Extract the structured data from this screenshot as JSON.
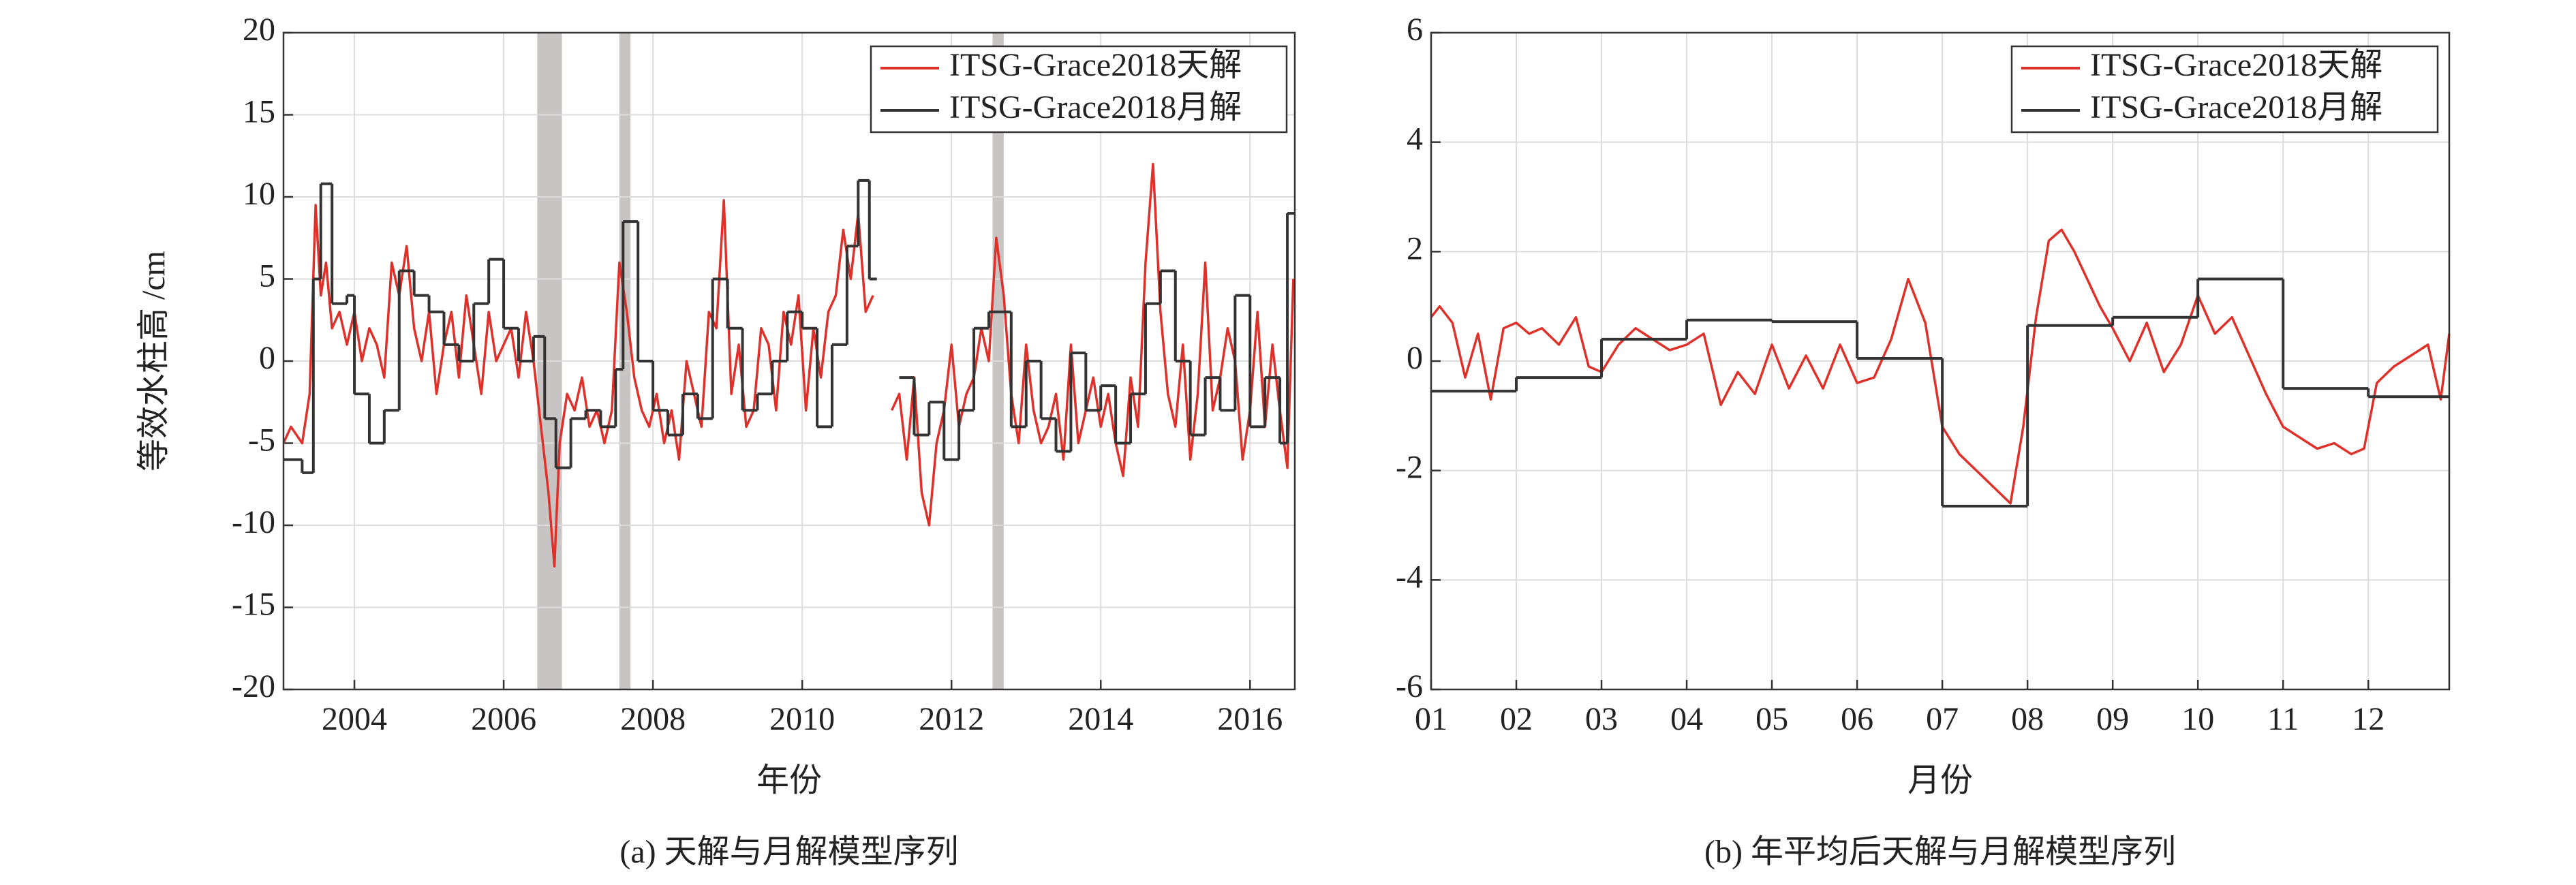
{
  "chart_data": [
    {
      "type": "line",
      "caption": "(a) 天解与月解模型序列",
      "xlabel": "年份",
      "ylabel": "等效水柱高 /cm",
      "xlim": [
        2003.05,
        2016.6
      ],
      "xticks": [
        2004,
        2006,
        2008,
        2010,
        2012,
        2014,
        2016
      ],
      "ylim": [
        -20,
        20
      ],
      "yticks": [
        -20,
        -15,
        -10,
        -5,
        0,
        5,
        10,
        15,
        20
      ],
      "grid": true,
      "legend": "upper right",
      "shade_color": "#c8c4c4",
      "shaded_spans": [
        [
          2006.45,
          2006.78
        ],
        [
          2007.55,
          2007.7
        ],
        [
          2012.55,
          2012.7
        ]
      ],
      "series": [
        {
          "name": "ITSG-Grace2018天解",
          "color": "#e0302a",
          "x": [
            2003.05,
            2003.15,
            2003.3,
            2003.4,
            2003.48,
            2003.55,
            2003.62,
            2003.7,
            2003.8,
            2003.9,
            2004.0,
            2004.1,
            2004.2,
            2004.3,
            2004.4,
            2004.5,
            2004.6,
            2004.7,
            2004.8,
            2004.9,
            2005.0,
            2005.1,
            2005.2,
            2005.3,
            2005.4,
            2005.5,
            2005.6,
            2005.7,
            2005.8,
            2005.9,
            2006.0,
            2006.1,
            2006.2,
            2006.3,
            2006.4,
            2006.5,
            2006.6,
            2006.68,
            2006.75,
            2006.85,
            2006.95,
            2007.05,
            2007.15,
            2007.25,
            2007.35,
            2007.45,
            2007.55,
            2007.65,
            2007.75,
            2007.85,
            2007.95,
            2008.05,
            2008.15,
            2008.25,
            2008.35,
            2008.45,
            2008.55,
            2008.65,
            2008.75,
            2008.85,
            2008.95,
            2009.05,
            2009.15,
            2009.25,
            2009.35,
            2009.45,
            2009.55,
            2009.65,
            2009.75,
            2009.85,
            2009.95,
            2010.05,
            2010.15,
            2010.25,
            2010.35,
            2010.45,
            2010.55,
            2010.65,
            2010.75,
            2010.85,
            2010.95,
            2011.05,
            2011.2,
            2011.3,
            2011.4,
            2011.5,
            2011.6,
            2011.7,
            2011.8,
            2011.9,
            2012.0,
            2012.1,
            2012.2,
            2012.3,
            2012.4,
            2012.5,
            2012.6,
            2012.7,
            2012.8,
            2012.9,
            2013.0,
            2013.1,
            2013.2,
            2013.3,
            2013.4,
            2013.5,
            2013.6,
            2013.7,
            2013.8,
            2013.9,
            2014.0,
            2014.1,
            2014.2,
            2014.3,
            2014.4,
            2014.5,
            2014.6,
            2014.7,
            2014.8,
            2014.9,
            2015.0,
            2015.1,
            2015.2,
            2015.3,
            2015.4,
            2015.5,
            2015.6,
            2015.7,
            2015.8,
            2015.9,
            2016.0,
            2016.1,
            2016.2,
            2016.3,
            2016.4,
            2016.5,
            2016.58
          ],
          "values": [
            -5,
            -4,
            -5,
            -2,
            9.5,
            4,
            6,
            2,
            3,
            1,
            3,
            0,
            2,
            1,
            -1,
            6,
            4,
            7,
            2,
            0,
            3,
            -2,
            1,
            3,
            -1,
            4,
            1,
            -2,
            3,
            0,
            1,
            2,
            -1,
            3,
            0,
            -4,
            -8,
            -12.5,
            -5,
            -2,
            -3,
            -1,
            -4,
            -3,
            -5,
            -3,
            6,
            3,
            -1,
            -3,
            -4,
            -2,
            -5,
            -3,
            -6,
            0,
            -2,
            -4,
            3,
            2,
            9.8,
            -2,
            1,
            -4,
            -3,
            2,
            1,
            -3,
            3,
            1,
            4,
            -3,
            2,
            -1,
            3,
            4,
            8,
            5,
            9,
            3,
            4,
            null,
            -3,
            -2,
            -6,
            -1,
            -8,
            -10,
            -5,
            -3,
            1,
            -4,
            -2,
            -1,
            2,
            0,
            7.5,
            4,
            -2,
            -5,
            1,
            -3,
            -5,
            -4,
            -2,
            -6,
            1,
            -5,
            -3,
            -1,
            -4,
            -2,
            -5,
            -7,
            -1,
            -4,
            6,
            12,
            3,
            -2,
            -4,
            1,
            -6,
            -2,
            6,
            -3,
            -1,
            2,
            0,
            -6,
            -3,
            3,
            -4,
            1,
            -3,
            -6.5,
            5
          ]
        },
        {
          "name": "ITSG-Grace2018月解",
          "color": "#333333",
          "step": true,
          "x": [
            2003.05,
            2003.3,
            2003.45,
            2003.55,
            2003.7,
            2003.9,
            2004.0,
            2004.2,
            2004.4,
            2004.6,
            2004.8,
            2005.0,
            2005.2,
            2005.4,
            2005.6,
            2005.8,
            2006.0,
            2006.2,
            2006.4,
            2006.55,
            2006.7,
            2006.9,
            2007.1,
            2007.3,
            2007.5,
            2007.6,
            2007.8,
            2008.0,
            2008.2,
            2008.4,
            2008.6,
            2008.8,
            2009.0,
            2009.2,
            2009.4,
            2009.6,
            2009.8,
            2010.0,
            2010.2,
            2010.4,
            2010.6,
            2010.75,
            2010.9,
            2011.0,
            2011.3,
            2011.5,
            2011.7,
            2011.9,
            2012.1,
            2012.3,
            2012.5,
            2012.8,
            2013.0,
            2013.2,
            2013.4,
            2013.6,
            2013.8,
            2014.0,
            2014.2,
            2014.4,
            2014.6,
            2014.8,
            2015.0,
            2015.2,
            2015.4,
            2015.6,
            2015.8,
            2016.0,
            2016.2,
            2016.4,
            2016.5
          ],
          "values": [
            -6,
            -6.8,
            5,
            10.8,
            3.5,
            4,
            -2,
            -5,
            -3,
            5.5,
            4,
            3,
            1,
            0,
            3.5,
            6.2,
            2,
            0,
            1.5,
            -3.5,
            -6.5,
            -3.5,
            -3,
            -4,
            -0.5,
            8.5,
            0,
            -3,
            -4.5,
            -2,
            -3.5,
            5,
            2,
            -3,
            -2,
            0,
            3,
            2,
            -4,
            1,
            7,
            11,
            5,
            null,
            -1,
            -4.5,
            -2.5,
            -6,
            -3,
            2,
            3,
            -4,
            0,
            -3.5,
            -5.5,
            0.5,
            -3,
            -1.5,
            -5,
            -2,
            3.5,
            5.5,
            0,
            -4.5,
            -1,
            -3,
            4,
            -4,
            -1,
            -5,
            9
          ]
        }
      ]
    },
    {
      "type": "line",
      "caption": "(b) 年平均后天解与月解模型序列",
      "xlabel": "月份",
      "xlim": [
        1,
        12.95
      ],
      "xticks": [
        {
          "value": 1,
          "label": "01"
        },
        {
          "value": 2,
          "label": "02"
        },
        {
          "value": 3,
          "label": "03"
        },
        {
          "value": 4,
          "label": "04"
        },
        {
          "value": 5,
          "label": "05"
        },
        {
          "value": 6,
          "label": "06"
        },
        {
          "value": 7,
          "label": "07"
        },
        {
          "value": 8,
          "label": "08"
        },
        {
          "value": 9,
          "label": "09"
        },
        {
          "value": 10,
          "label": "10"
        },
        {
          "value": 11,
          "label": "11"
        },
        {
          "value": 12,
          "label": "12"
        }
      ],
      "ylim": [
        -6,
        6
      ],
      "yticks": [
        -6,
        -4,
        -2,
        0,
        2,
        4,
        6
      ],
      "grid": true,
      "legend": "upper right",
      "series": [
        {
          "name": "ITSG-Grace2018天解",
          "color": "#e0302a",
          "x": [
            1,
            1.1,
            1.25,
            1.4,
            1.55,
            1.7,
            1.85,
            2.0,
            2.15,
            2.3,
            2.5,
            2.7,
            2.85,
            3.0,
            3.2,
            3.4,
            3.6,
            3.8,
            4.0,
            4.2,
            4.4,
            4.6,
            4.8,
            5.0,
            5.2,
            5.4,
            5.6,
            5.8,
            6.0,
            6.2,
            6.4,
            6.6,
            6.8,
            7.0,
            7.2,
            7.4,
            7.6,
            7.8,
            7.95,
            8.1,
            8.25,
            8.4,
            8.55,
            8.7,
            8.85,
            9.0,
            9.2,
            9.4,
            9.6,
            9.8,
            10.0,
            10.2,
            10.4,
            10.6,
            10.8,
            11.0,
            11.2,
            11.4,
            11.6,
            11.8,
            11.95,
            12.1,
            12.3,
            12.5,
            12.7,
            12.85,
            12.95
          ],
          "values": [
            0.8,
            1.0,
            0.7,
            -0.3,
            0.5,
            -0.7,
            0.6,
            0.7,
            0.5,
            0.6,
            0.3,
            0.8,
            -0.1,
            -0.2,
            0.3,
            0.6,
            0.4,
            0.2,
            0.3,
            0.5,
            -0.8,
            -0.2,
            -0.6,
            0.3,
            -0.5,
            0.1,
            -0.5,
            0.3,
            -0.4,
            -0.3,
            0.4,
            1.5,
            0.7,
            -1.2,
            -1.7,
            -2.0,
            -2.3,
            -2.6,
            -1.2,
            0.8,
            2.2,
            2.4,
            2.0,
            1.5,
            1.0,
            0.6,
            0.0,
            0.7,
            -0.2,
            0.3,
            1.2,
            0.5,
            0.8,
            0.1,
            -0.6,
            -1.2,
            -1.4,
            -1.6,
            -1.5,
            -1.7,
            -1.6,
            -0.4,
            -0.1,
            0.1,
            0.3,
            -0.7,
            0.5
          ]
        },
        {
          "name": "ITSG-Grace2018月解",
          "color": "#333333",
          "step": true,
          "x": [
            1,
            2,
            3,
            4,
            5,
            6,
            7,
            8,
            9,
            10,
            11,
            12
          ],
          "values": [
            -0.55,
            -0.3,
            0.4,
            0.75,
            0.72,
            0.05,
            -2.65,
            0.65,
            0.8,
            1.5,
            -0.5,
            -0.65
          ]
        }
      ]
    }
  ]
}
